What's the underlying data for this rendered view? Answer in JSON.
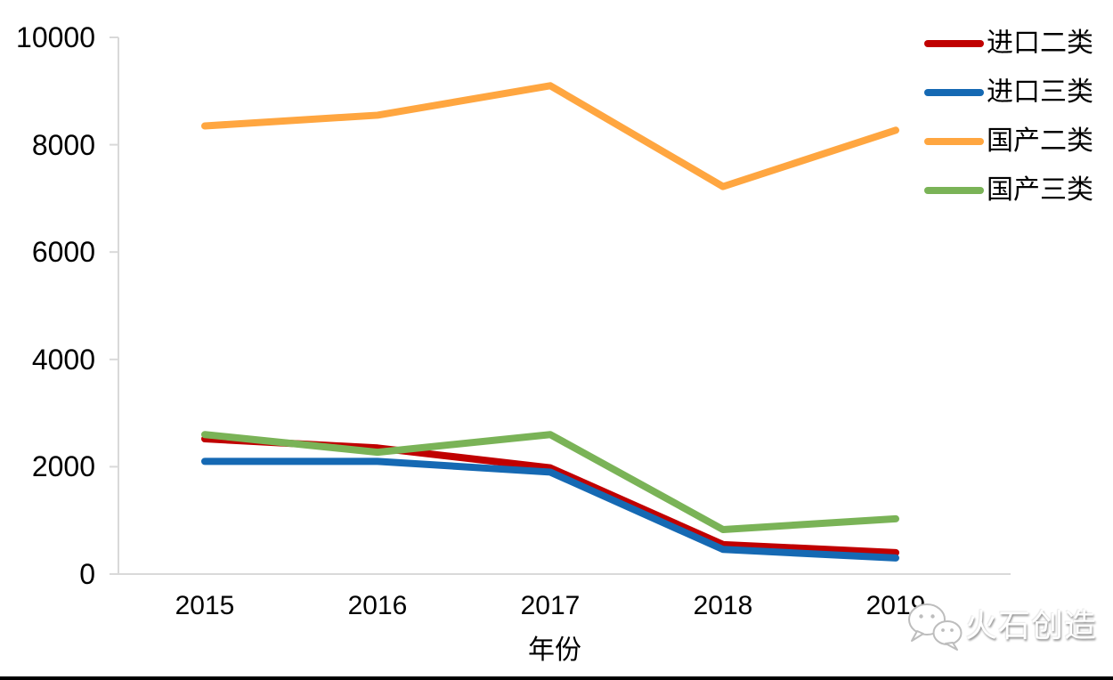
{
  "chart_data": {
    "type": "line",
    "categories": [
      "2015",
      "2016",
      "2017",
      "2018",
      "2019"
    ],
    "series": [
      {
        "name": "进口二类",
        "color": "#c00000",
        "values": [
          2520,
          2350,
          1980,
          550,
          400
        ]
      },
      {
        "name": "进口三类",
        "color": "#1569b3",
        "values": [
          2100,
          2100,
          1900,
          460,
          300
        ]
      },
      {
        "name": "国产二类",
        "color": "#ffa640",
        "values": [
          8350,
          8550,
          9100,
          7220,
          8270
        ]
      },
      {
        "name": "国产三类",
        "color": "#7ab357",
        "values": [
          2600,
          2270,
          2600,
          830,
          1030
        ]
      }
    ],
    "title": "",
    "xlabel": "年份",
    "ylabel": "",
    "ylim": [
      0,
      10000
    ],
    "yticks": [
      0,
      2000,
      4000,
      6000,
      8000,
      10000
    ],
    "grid": false,
    "legend_position": "right-top",
    "axis_color": "#d9d9d9",
    "line_width": 8
  },
  "watermark": {
    "text": "火石创造",
    "icon": "wechat-logo-icon"
  }
}
